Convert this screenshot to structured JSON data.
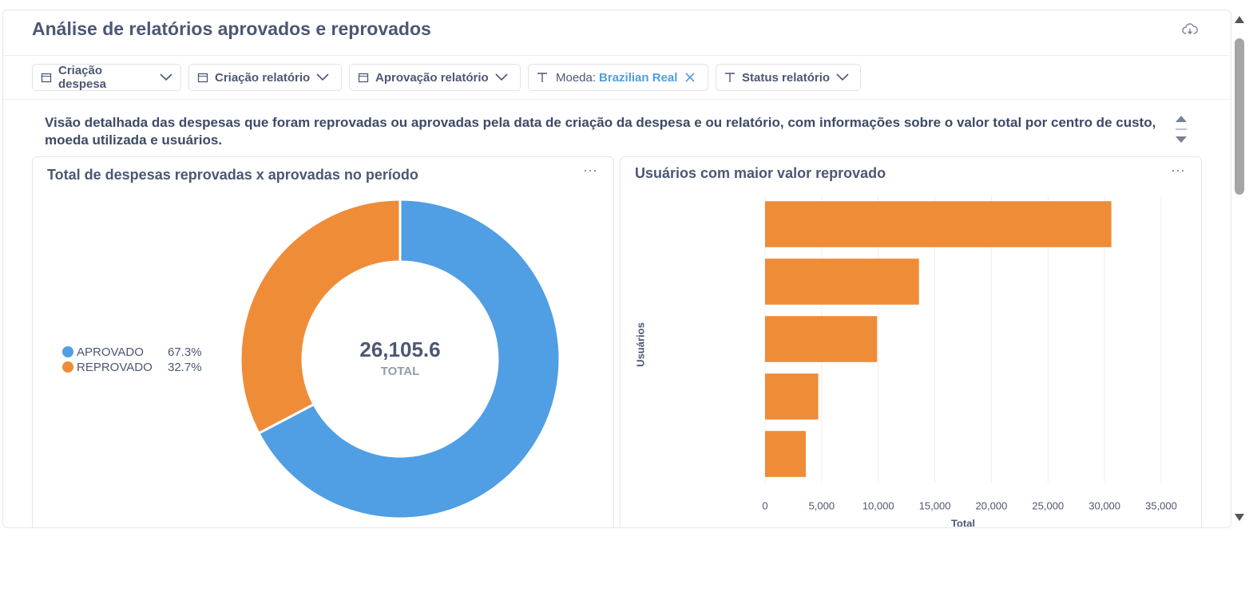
{
  "header": {
    "title": "Análise de relatórios aprovados e reprovados"
  },
  "filters": [
    {
      "label": "Criação despesa"
    },
    {
      "label": "Criação relatório"
    },
    {
      "label": "Aprovação relatório"
    },
    {
      "label": "Moeda:",
      "value": "Brazilian Real"
    },
    {
      "label": "Status relatório"
    }
  ],
  "description": "Visão detalhada das despesas que foram reprovadas ou aprovadas pela data de criação da despesa e ou relatório, com informações sobre o valor total por centro de custo, moeda utilizada e usuários.",
  "chart_data": [
    {
      "type": "donut",
      "title": "Total de despesas reprovadas x aprovadas no período",
      "categories": [
        "APROVADO",
        "REPROVADO"
      ],
      "values": [
        67.3,
        32.7
      ],
      "value_labels": [
        "67.3%",
        "32.7%"
      ],
      "colors": [
        "#509ee3",
        "#ef8c38"
      ],
      "total": {
        "value": 26105.6,
        "label": "26,105.6"
      },
      "total_label": "TOTAL",
      "legend": "left"
    },
    {
      "type": "hbar",
      "title": "Usuários com maior valor reprovado",
      "categories": [
        null,
        null,
        null,
        null,
        null
      ],
      "values": [
        30600,
        13600,
        9900,
        4700,
        3600
      ],
      "color": "#ef8c38",
      "xlabel": "Total",
      "ylabel": "Usuários",
      "xlim": [
        0,
        35000
      ],
      "xticks": [
        0,
        {
          "value": 5000,
          "label": "5,000"
        },
        {
          "value": 10000,
          "label": "10,000"
        },
        {
          "value": 15000,
          "label": "15,000"
        },
        {
          "value": 20000,
          "label": "20,000"
        },
        {
          "value": 25000,
          "label": "25,000"
        },
        {
          "value": 30000,
          "label": "30,000"
        },
        {
          "value": 35000,
          "label": "35,000"
        }
      ],
      "grid": true
    }
  ]
}
